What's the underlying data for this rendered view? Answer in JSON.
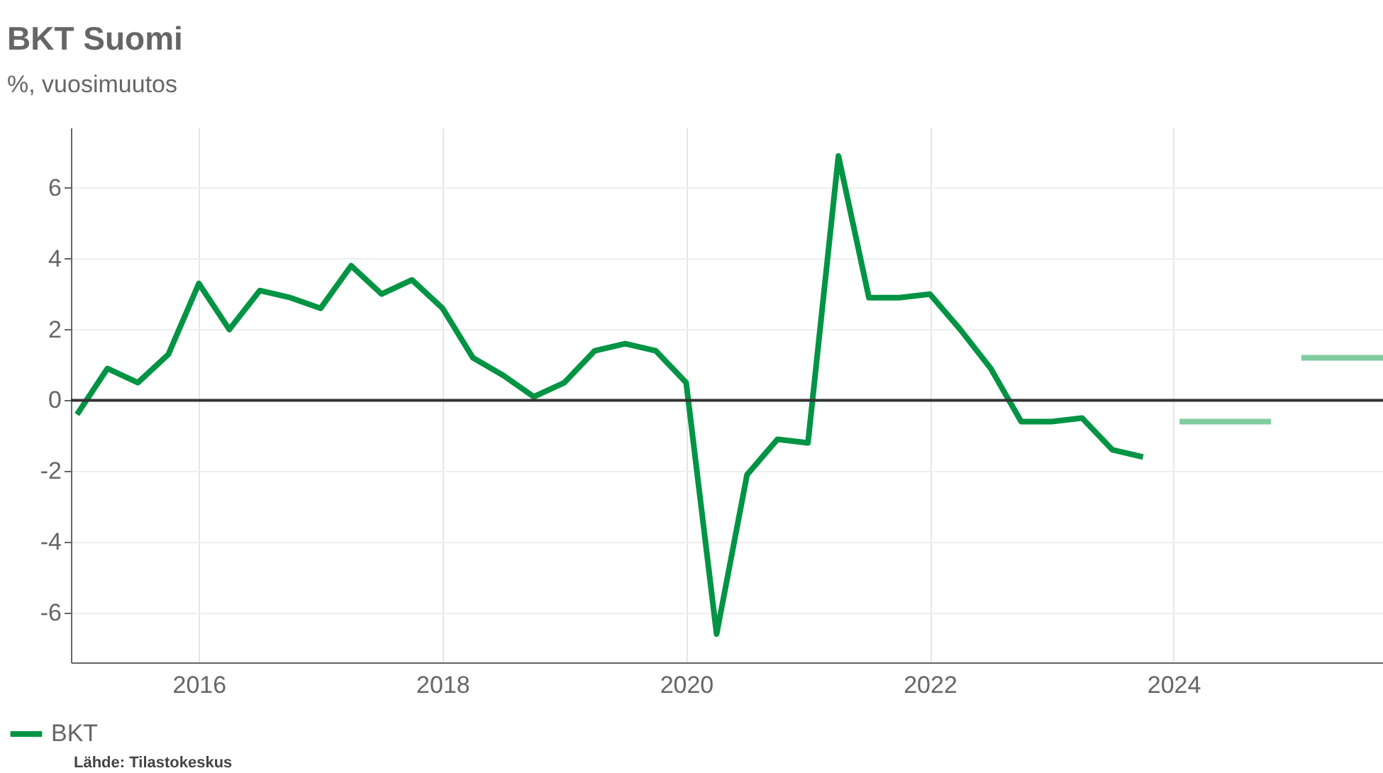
{
  "chart_data": {
    "type": "line",
    "title": "BKT Suomi",
    "subtitle": "%, vuosimuutos",
    "xlim": [
      2014.95,
      2025.72
    ],
    "xticks": [
      2016,
      2018,
      2020,
      2022,
      2024
    ],
    "ylim": [
      -7.4,
      7.7
    ],
    "yticks": [
      -6,
      -4,
      -2,
      0,
      2,
      4,
      6
    ],
    "series": [
      {
        "name": "BKT",
        "color": "#009444",
        "x": [
          2015,
          2015.25,
          2015.5,
          2015.75,
          2016,
          2016.25,
          2016.5,
          2016.75,
          2017,
          2017.25,
          2017.5,
          2017.75,
          2018,
          2018.25,
          2018.5,
          2018.75,
          2019,
          2019.25,
          2019.5,
          2019.75,
          2020,
          2020.25,
          2020.5,
          2020.75,
          2021,
          2021.25,
          2021.5,
          2021.75,
          2022,
          2022.25,
          2022.5,
          2022.75,
          2023,
          2023.25,
          2023.5,
          2023.75
        ],
        "values": [
          -0.4,
          0.9,
          0.5,
          1.3,
          3.3,
          2.0,
          3.1,
          2.9,
          2.6,
          3.8,
          3.0,
          3.4,
          2.6,
          1.2,
          0.7,
          0.1,
          0.5,
          1.4,
          1.6,
          1.4,
          0.5,
          -6.6,
          -2.1,
          -1.1,
          -1.2,
          6.9,
          2.9,
          2.9,
          3.0,
          2.0,
          0.9,
          -0.6,
          -0.6,
          -0.5,
          -1.4,
          -1.6
        ]
      },
      {
        "color": "#80cc9f",
        "x": [
          2024.05,
          2024.8
        ],
        "values": [
          -0.6,
          -0.6
        ]
      },
      {
        "color": "#80cc9f",
        "x": [
          2025.05,
          2025.72
        ],
        "values": [
          1.2,
          1.2
        ]
      }
    ],
    "ref_lines": [
      {
        "axis": "y",
        "value": 0,
        "color": "#333333"
      }
    ],
    "grid": true,
    "legend": "bottom left",
    "annotations": [
      "Lähde: Tilastokeskus"
    ]
  }
}
